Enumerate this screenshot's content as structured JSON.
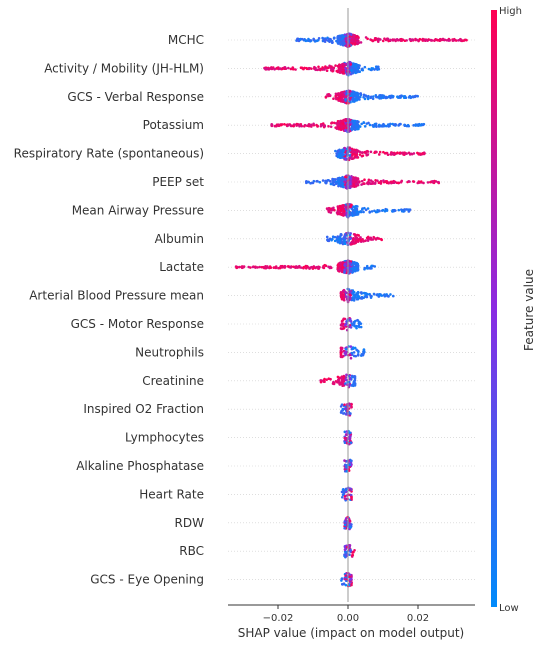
{
  "chart_data": {
    "type": "scatter",
    "subtype": "shap-beeswarm",
    "xlabel": "SHAP value (impact on model output)",
    "x_ticks": [
      -0.02,
      0.0,
      0.02
    ],
    "x_tick_labels": [
      "−0.02",
      "0.00",
      "0.02"
    ],
    "xlim": [
      -0.035,
      0.037
    ],
    "colorbar": {
      "title": "Feature value",
      "high_label": "High",
      "low_label": "Low",
      "high_color": "#ff0052",
      "low_color": "#008bfb"
    },
    "features": [
      {
        "name": "MCHC",
        "min": -0.015,
        "max": 0.034,
        "low_side": "left"
      },
      {
        "name": "Activity / Mobility (JH-HLM)",
        "min": -0.024,
        "max": 0.009,
        "low_side": "right"
      },
      {
        "name": "GCS - Verbal Response",
        "min": -0.007,
        "max": 0.02,
        "low_side": "right"
      },
      {
        "name": "Potassium",
        "min": -0.022,
        "max": 0.022,
        "low_side": "right"
      },
      {
        "name": "Respiratory Rate (spontaneous)",
        "min": -0.004,
        "max": 0.022,
        "low_side": "left"
      },
      {
        "name": "PEEP set",
        "min": -0.012,
        "max": 0.026,
        "low_side": "left"
      },
      {
        "name": "Mean Airway Pressure",
        "min": -0.006,
        "max": 0.018,
        "low_side": "right"
      },
      {
        "name": "Albumin",
        "min": -0.006,
        "max": 0.01,
        "low_side": "left"
      },
      {
        "name": "Lactate",
        "min": -0.032,
        "max": 0.008,
        "low_side": "right"
      },
      {
        "name": "Arterial Blood Pressure mean",
        "min": -0.002,
        "max": 0.013,
        "low_side": "right"
      },
      {
        "name": "GCS - Motor Response",
        "min": -0.002,
        "max": 0.004,
        "low_side": "right"
      },
      {
        "name": "Neutrophils",
        "min": -0.002,
        "max": 0.005,
        "low_side": "right"
      },
      {
        "name": "Creatinine",
        "min": -0.008,
        "max": 0.002,
        "low_side": "right"
      },
      {
        "name": "Inspired O2 Fraction",
        "min": -0.002,
        "max": 0.001,
        "low_side": "left"
      },
      {
        "name": "Lymphocytes",
        "min": -0.001,
        "max": 0.001,
        "low_side": "left"
      },
      {
        "name": "Alkaline Phosphatase",
        "min": -0.001,
        "max": 0.001,
        "low_side": "left"
      },
      {
        "name": "Heart Rate",
        "min": -0.002,
        "max": 0.001,
        "low_side": "left"
      },
      {
        "name": "RDW",
        "min": -0.001,
        "max": 0.001,
        "low_side": "left"
      },
      {
        "name": "RBC",
        "min": -0.001,
        "max": 0.002,
        "low_side": "left"
      },
      {
        "name": "GCS - Eye Opening",
        "min": -0.002,
        "max": 0.001,
        "low_side": "left"
      }
    ]
  }
}
